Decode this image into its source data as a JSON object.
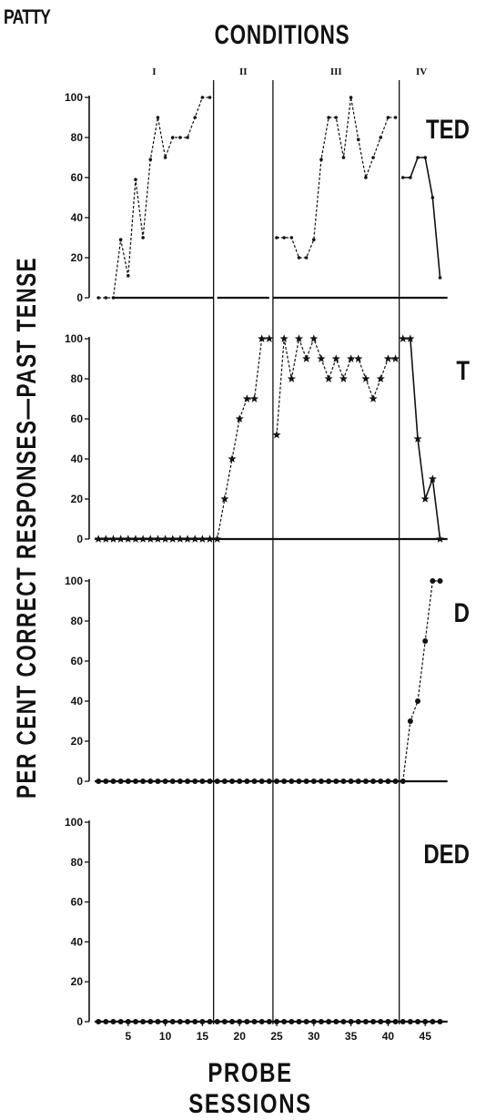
{
  "subject": "PATTY",
  "header": "CONDITIONS",
  "ylabel": "PER CENT CORRECT RESPONSES—PAST TENSE",
  "xlabel": "PROBE SESSIONS",
  "chart_data": {
    "type": "line",
    "x_ticks": [
      5,
      10,
      15,
      20,
      25,
      30,
      35,
      40,
      45
    ],
    "y_ticks": [
      0,
      20,
      40,
      60,
      80,
      100
    ],
    "xlim": [
      0,
      48
    ],
    "ylim": [
      0,
      100
    ],
    "conditions": [
      {
        "label": "I",
        "start": 0.5,
        "end": 16.5
      },
      {
        "label": "II",
        "start": 16.5,
        "end": 24.5
      },
      {
        "label": "III",
        "start": 24.5,
        "end": 41.5
      },
      {
        "label": "IV",
        "start": 41.5,
        "end": 48
      }
    ],
    "phase_lines": [
      16.5,
      24.5,
      41.5
    ],
    "panels": [
      {
        "label": "TED",
        "marker": "dot",
        "baseline_segments": [
          [
            3,
            16.5
          ],
          [
            17,
            24
          ],
          [
            24.5,
            48
          ]
        ],
        "segments": [
          {
            "style": "dashed",
            "x": [
              1,
              2,
              3,
              4,
              5,
              6,
              7,
              8,
              9,
              10,
              11,
              12,
              13,
              14,
              15,
              16
            ],
            "y": [
              0,
              0,
              0,
              29,
              11,
              59,
              30,
              69,
              90,
              70,
              80,
              80,
              80,
              90,
              100,
              100
            ]
          },
          {
            "style": "dashed",
            "x": [
              25,
              26,
              27,
              28,
              29,
              30,
              31,
              32,
              33,
              34,
              35,
              36,
              37,
              38,
              39,
              40,
              41
            ],
            "y": [
              30,
              30,
              30,
              20,
              20,
              29,
              69,
              90,
              90,
              70,
              100,
              79,
              60,
              70,
              80,
              90,
              90
            ]
          },
          {
            "style": "solid",
            "x": [
              42,
              43,
              44,
              45,
              46,
              47
            ],
            "y": [
              60,
              60,
              70,
              70,
              50,
              10
            ]
          }
        ]
      },
      {
        "label": "T",
        "marker": "star",
        "baseline_segments": [
          [
            0.5,
            48
          ]
        ],
        "segments": [
          {
            "style": "dashed",
            "x": [
              1,
              2,
              3,
              4,
              5,
              6,
              7,
              8,
              9,
              10,
              11,
              12,
              13,
              14,
              15,
              16,
              17,
              18,
              19,
              20,
              21,
              22,
              23,
              24
            ],
            "y": [
              0,
              0,
              0,
              0,
              0,
              0,
              0,
              0,
              0,
              0,
              0,
              0,
              0,
              0,
              0,
              0,
              0,
              20,
              40,
              60,
              70,
              70,
              100,
              100
            ]
          },
          {
            "style": "dashed",
            "x": [
              25,
              26,
              27,
              28,
              29,
              30,
              31,
              32,
              33,
              34,
              35,
              36,
              37,
              38,
              39,
              40,
              41
            ],
            "y": [
              52,
              100,
              80,
              100,
              90,
              100,
              90,
              80,
              90,
              80,
              90,
              90,
              80,
              70,
              80,
              90,
              90
            ]
          },
          {
            "style": "solid",
            "x": [
              42,
              43,
              44,
              45,
              46,
              47
            ],
            "y": [
              100,
              100,
              50,
              20,
              30,
              0
            ]
          }
        ]
      },
      {
        "label": "D",
        "marker": "circle",
        "baseline_segments": [
          [
            0.5,
            48
          ]
        ],
        "segments": [
          {
            "style": "dashed",
            "x": [
              1,
              2,
              3,
              4,
              5,
              6,
              7,
              8,
              9,
              10,
              11,
              12,
              13,
              14,
              15,
              16,
              17,
              18,
              19,
              20,
              21,
              22,
              23,
              24,
              25,
              26,
              27,
              28,
              29,
              30,
              31,
              32,
              33,
              34,
              35,
              36,
              37,
              38,
              39,
              40,
              41
            ],
            "y": [
              0,
              0,
              0,
              0,
              0,
              0,
              0,
              0,
              0,
              0,
              0,
              0,
              0,
              0,
              0,
              0,
              0,
              0,
              0,
              0,
              0,
              0,
              0,
              0,
              0,
              0,
              0,
              0,
              0,
              0,
              0,
              0,
              0,
              0,
              0,
              0,
              0,
              0,
              0,
              0,
              0
            ]
          },
          {
            "style": "dashed",
            "x": [
              42,
              43,
              44,
              45,
              46,
              47
            ],
            "y": [
              0,
              30,
              40,
              70,
              100,
              100
            ]
          }
        ]
      },
      {
        "label": "DED",
        "marker": "circle",
        "baseline_segments": [
          [
            0.5,
            48
          ]
        ],
        "segments": [
          {
            "style": "dashed",
            "x": [
              1,
              2,
              3,
              4,
              5,
              6,
              7,
              8,
              9,
              10,
              11,
              12,
              13,
              14,
              15,
              16,
              17,
              18,
              19,
              20,
              21,
              22,
              23,
              24,
              25,
              26,
              27,
              28,
              29,
              30,
              31,
              32,
              33,
              34,
              35,
              36,
              37,
              38,
              39,
              40,
              41,
              42,
              43,
              44,
              45,
              46,
              47
            ],
            "y": [
              0,
              0,
              0,
              0,
              0,
              0,
              0,
              0,
              0,
              0,
              0,
              0,
              0,
              0,
              0,
              0,
              0,
              0,
              0,
              0,
              0,
              0,
              0,
              0,
              0,
              0,
              0,
              0,
              0,
              0,
              0,
              0,
              0,
              0,
              0,
              0,
              0,
              0,
              0,
              0,
              0,
              0,
              0,
              0,
              0,
              0,
              0
            ]
          }
        ]
      }
    ]
  }
}
